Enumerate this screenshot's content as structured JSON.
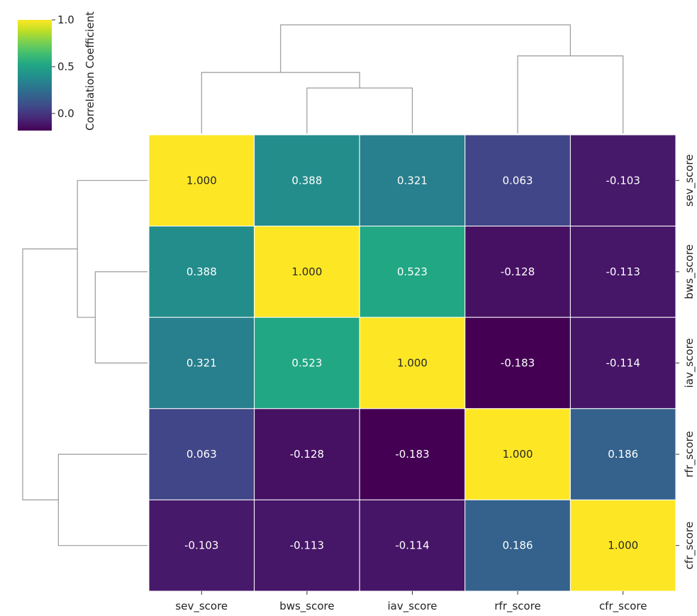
{
  "chart_data": {
    "type": "heatmap",
    "variables": [
      "sev_score",
      "bws_score",
      "iav_score",
      "rfr_score",
      "cfr_score"
    ],
    "row_labels": [
      "sev_score",
      "bws_score",
      "iav_score",
      "rfr_score",
      "cfr_score"
    ],
    "col_labels": [
      "sev_score",
      "bws_score",
      "iav_score",
      "rfr_score",
      "cfr_score"
    ],
    "matrix": [
      [
        1.0,
        0.388,
        0.321,
        0.063,
        -0.103
      ],
      [
        0.388,
        1.0,
        0.523,
        -0.128,
        -0.113
      ],
      [
        0.321,
        0.523,
        1.0,
        -0.183,
        -0.114
      ],
      [
        0.063,
        -0.128,
        -0.183,
        1.0,
        0.186
      ],
      [
        -0.103,
        -0.113,
        -0.114,
        0.186,
        1.0
      ]
    ],
    "cell_labels": [
      [
        "1.000",
        "0.388",
        "0.321",
        "0.063",
        "-0.103"
      ],
      [
        "0.388",
        "1.000",
        "0.523",
        "-0.128",
        "-0.113"
      ],
      [
        "0.321",
        "0.523",
        "1.000",
        "-0.183",
        "-0.114"
      ],
      [
        "0.063",
        "-0.128",
        "-0.183",
        "1.000",
        "0.186"
      ],
      [
        "-0.103",
        "-0.113",
        "-0.114",
        "0.186",
        "1.000"
      ]
    ],
    "colormap": "viridis",
    "value_range": [
      -0.183,
      1.0
    ],
    "colorbar": {
      "label": "Correlation Coefficient",
      "ticks": [
        1.0,
        0.5,
        0.0
      ],
      "tick_labels": [
        "1.0",
        "0.5",
        "0.0"
      ],
      "placement": "top-left"
    },
    "dendrograms": {
      "column": {
        "placement": "top",
        "merges": [
          {
            "left": "bws_score",
            "right": "iav_score",
            "height": 0.477
          },
          {
            "left": "rfr_score",
            "right": "cfr_score",
            "height": 0.814
          },
          {
            "left": "sev_score",
            "right": "bws_score+iav_score",
            "height": 0.64
          },
          {
            "left": "sev_score+bws_score+iav_score",
            "right": "rfr_score+cfr_score",
            "height": 1.14
          }
        ]
      },
      "row": {
        "placement": "left",
        "merges": [
          {
            "left": "bws_score",
            "right": "iav_score",
            "height": 0.477
          },
          {
            "left": "rfr_score",
            "right": "cfr_score",
            "height": 0.814
          },
          {
            "left": "sev_score",
            "right": "bws_score+iav_score",
            "height": 0.64
          },
          {
            "left": "sev_score+bws_score+iav_score",
            "right": "rfr_score+cfr_score",
            "height": 1.14
          }
        ]
      }
    },
    "grid": true
  }
}
